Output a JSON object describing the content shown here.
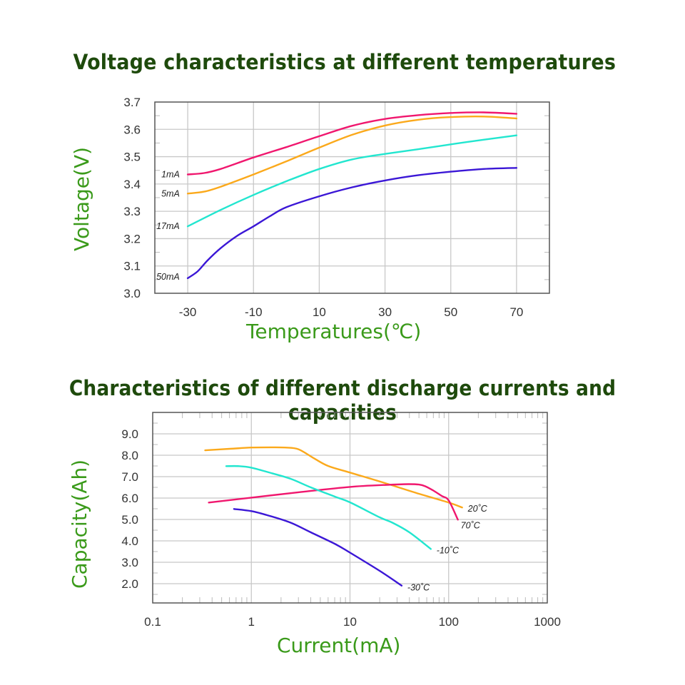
{
  "chart_data": [
    {
      "type": "line",
      "title": "Voltage characteristics at different temperatures",
      "xlabel": "Temperatures(℃)",
      "ylabel": "Voltage(V)",
      "xlim": [
        -40,
        80
      ],
      "ylim": [
        3.0,
        3.7
      ],
      "xscale": "linear",
      "grid": true,
      "x_ticks": [
        -30,
        -10,
        10,
        30,
        50,
        70
      ],
      "x_tick_labels": [
        "-30",
        "-10",
        "10",
        "30",
        "50",
        "70"
      ],
      "y_ticks": [
        3.0,
        3.1,
        3.2,
        3.3,
        3.4,
        3.5,
        3.6,
        3.7
      ],
      "y_tick_labels": [
        "3.0",
        "3.1",
        "3.2",
        "3.3",
        "3.4",
        "3.5",
        "3.6",
        "3.7"
      ],
      "legend_placement": "inline-left",
      "series": [
        {
          "name": "1mA",
          "color": "#f0176e",
          "x": [
            -30,
            -25,
            -20,
            -10,
            0,
            10,
            20,
            30,
            40,
            50,
            60,
            70
          ],
          "y": [
            3.435,
            3.44,
            3.455,
            3.497,
            3.535,
            3.575,
            3.613,
            3.638,
            3.652,
            3.66,
            3.662,
            3.657
          ]
        },
        {
          "name": "5mA",
          "color": "#fba91b",
          "x": [
            -30,
            -25,
            -20,
            -10,
            0,
            10,
            20,
            30,
            40,
            50,
            60,
            70
          ],
          "y": [
            3.365,
            3.372,
            3.39,
            3.435,
            3.483,
            3.533,
            3.58,
            3.614,
            3.635,
            3.645,
            3.647,
            3.64
          ]
        },
        {
          "name": "17mA",
          "color": "#22e6cf",
          "x": [
            -30,
            -20,
            -10,
            0,
            10,
            20,
            30,
            40,
            50,
            60,
            70
          ],
          "y": [
            3.245,
            3.305,
            3.36,
            3.41,
            3.455,
            3.49,
            3.51,
            3.527,
            3.545,
            3.562,
            3.578
          ]
        },
        {
          "name": "50mA",
          "color": "#3b17d6",
          "x": [
            -30,
            -27,
            -24,
            -20,
            -15,
            -10,
            -5,
            0,
            10,
            20,
            30,
            40,
            50,
            60,
            70
          ],
          "y": [
            3.055,
            3.08,
            3.12,
            3.165,
            3.21,
            3.245,
            3.282,
            3.315,
            3.355,
            3.388,
            3.413,
            3.432,
            3.445,
            3.455,
            3.459
          ]
        }
      ]
    },
    {
      "type": "line",
      "title": "Characteristics of different discharge currents and capacities",
      "xlabel": "Current(mA)",
      "ylabel": "Capacity(Ah)",
      "xlim": [
        0.1,
        1000
      ],
      "ylim": [
        1.1,
        10.0
      ],
      "xscale": "log",
      "grid": true,
      "x_ticks": [
        0.1,
        1,
        10,
        100,
        1000
      ],
      "x_tick_labels": [
        "0.1",
        "1",
        "10",
        "100",
        "1000"
      ],
      "y_ticks": [
        2.0,
        3.0,
        4.0,
        5.0,
        6.0,
        7.0,
        8.0,
        9.0
      ],
      "y_tick_labels": [
        "2.0",
        "3.0",
        "4.0",
        "5.0",
        "6.0",
        "7.0",
        "8.0",
        "9.0"
      ],
      "legend_placement": "inline-right",
      "series": [
        {
          "name": "20˚C",
          "color": "#fba91b",
          "x": [
            0.34,
            0.6,
            1,
            1.6,
            2.2,
            3,
            4.3,
            6,
            10,
            22.6,
            50,
            100,
            137
          ],
          "y": [
            8.23,
            8.3,
            8.36,
            8.37,
            8.36,
            8.28,
            7.86,
            7.5,
            7.19,
            6.7,
            6.2,
            5.79,
            5.56
          ]
        },
        {
          "name": "70˚C",
          "color": "#f0176e",
          "x": [
            0.37,
            1,
            3,
            10,
            25,
            39.4,
            50,
            58,
            70,
            85,
            100,
            124
          ],
          "y": [
            5.79,
            6.02,
            6.27,
            6.52,
            6.62,
            6.65,
            6.63,
            6.55,
            6.35,
            6.1,
            5.89,
            4.99
          ]
        },
        {
          "name": "-10˚C",
          "color": "#22e6cf",
          "x": [
            0.556,
            0.75,
            1,
            1.5,
            2.5,
            4,
            7.1,
            10,
            20,
            26.9,
            40,
            66
          ],
          "y": [
            7.49,
            7.49,
            7.42,
            7.2,
            6.9,
            6.5,
            6.06,
            5.8,
            5.1,
            4.85,
            4.4,
            3.62
          ]
        },
        {
          "name": "-30˚C",
          "color": "#3b17d6",
          "x": [
            0.667,
            1,
            1.5,
            2.5,
            4,
            7.1,
            10,
            20,
            33.4
          ],
          "y": [
            5.49,
            5.39,
            5.18,
            4.85,
            4.4,
            3.85,
            3.45,
            2.6,
            1.91
          ]
        }
      ]
    }
  ]
}
